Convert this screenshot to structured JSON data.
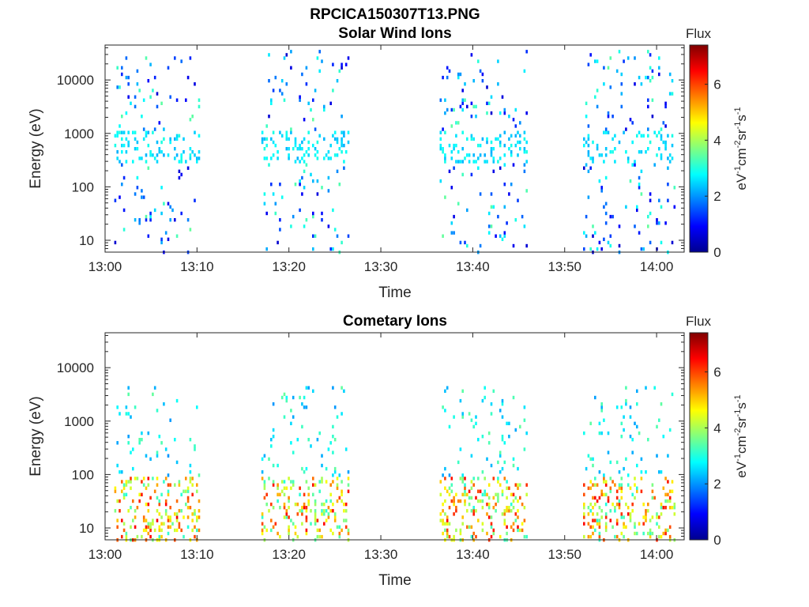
{
  "figure": {
    "title": "RPCICA150307T13.PNG"
  },
  "colormap": {
    "name": "jet",
    "stops": [
      "#00008f",
      "#0000ff",
      "#0080ff",
      "#00ffff",
      "#80ff80",
      "#ffff00",
      "#ff8000",
      "#ff0000",
      "#800000"
    ]
  },
  "chart_data": [
    {
      "type": "heatmap",
      "title": "Solar Wind Ions",
      "xlabel": "Time",
      "ylabel": "Energy (eV)",
      "xticks": [
        "13:00",
        "13:10",
        "13:20",
        "13:30",
        "13:40",
        "13:50",
        "14:00"
      ],
      "xlim_minutes": [
        0,
        63
      ],
      "yscale": "log",
      "ylim": [
        6,
        45000
      ],
      "yticks": [
        10,
        100,
        1000,
        10000
      ],
      "ytick_labels": [
        "10",
        "100",
        "1000",
        "10000"
      ],
      "colorbar": {
        "title": "Flux",
        "label": "eV-1cm-2sr-1s-1",
        "range": [
          0,
          7.4
        ],
        "ticks": [
          0,
          2,
          4,
          6
        ],
        "tick_labels": [
          "0",
          "2",
          "4",
          "6"
        ]
      },
      "data_intervals_minutes": [
        [
          1,
          10.3
        ],
        [
          17,
          26.5
        ],
        [
          36.4,
          45.8
        ],
        [
          52,
          62
        ]
      ],
      "features": [
        {
          "description": "scattered counts",
          "energy_range": [
            6,
            40000
          ],
          "flux_range": [
            0.5,
            3.5
          ]
        },
        {
          "description": "dense band",
          "energy_range": [
            300,
            1200
          ],
          "flux_range": [
            2.2,
            3.0
          ]
        }
      ]
    },
    {
      "type": "heatmap",
      "title": "Cometary Ions",
      "xlabel": "Time",
      "ylabel": "Energy (eV)",
      "xticks": [
        "13:00",
        "13:10",
        "13:20",
        "13:30",
        "13:40",
        "13:50",
        "14:00"
      ],
      "xlim_minutes": [
        0,
        63
      ],
      "yscale": "log",
      "ylim": [
        6,
        45000
      ],
      "yticks": [
        10,
        100,
        1000,
        10000
      ],
      "ytick_labels": [
        "10",
        "100",
        "1000",
        "10000"
      ],
      "colorbar": {
        "title": "Flux",
        "label": "eV-1cm-2sr-1s-1",
        "range": [
          0,
          7.4
        ],
        "ticks": [
          0,
          2,
          4,
          6
        ],
        "tick_labels": [
          "0",
          "2",
          "4",
          "6"
        ]
      },
      "data_intervals_minutes": [
        [
          1,
          10.3
        ],
        [
          17,
          26.5
        ],
        [
          36.4,
          45.8
        ],
        [
          52,
          62
        ]
      ],
      "features": [
        {
          "description": "low-energy cometary ions",
          "energy_range": [
            6,
            100
          ],
          "flux_range": [
            3.0,
            6.5
          ]
        },
        {
          "description": "energy sweeps",
          "energy_range": [
            100,
            5000
          ],
          "flux_range": [
            2.0,
            3.5
          ]
        }
      ]
    }
  ]
}
